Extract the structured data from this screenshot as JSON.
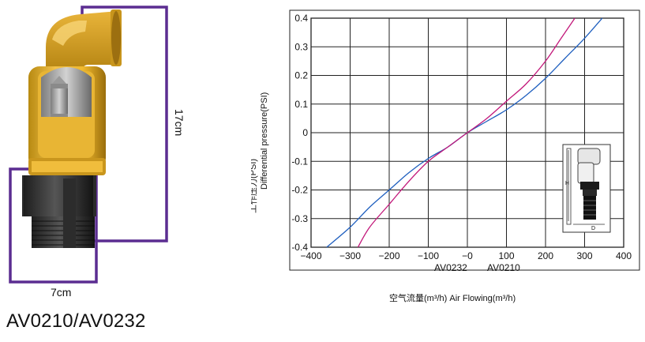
{
  "product": {
    "model_title": "AV0210/AV0232",
    "height_dimension": "17cm",
    "width_dimension": "7cm"
  },
  "chart_data": {
    "type": "line",
    "title": "",
    "xlabel": "空气流量(m³/h)  Air Flowing(m³/h)",
    "ylabel_cn": "工作压力(PSI)",
    "ylabel_en": "Differential pressure(PSI)",
    "xlim": [
      -400,
      400
    ],
    "ylim": [
      -0.4,
      0.4
    ],
    "grid": true,
    "xticks": [
      "−400",
      "−300",
      "−200",
      "−100",
      "−0",
      "100",
      "200",
      "300",
      "400"
    ],
    "yticks": [
      "0.4",
      "0.3",
      "0.2",
      "0.1",
      "0",
      "-0.1",
      "-0.2",
      "-0.3",
      "-0.4"
    ],
    "series_labels": [
      "AV0232",
      "AV0210"
    ],
    "series": [
      {
        "name": "AV0232",
        "color": "#1f5fbf",
        "points": [
          [
            -360,
            -0.4
          ],
          [
            -300,
            -0.33
          ],
          [
            -250,
            -0.26
          ],
          [
            -200,
            -0.2
          ],
          [
            -150,
            -0.14
          ],
          [
            -100,
            -0.09
          ],
          [
            -50,
            -0.05
          ],
          [
            0,
            0
          ],
          [
            50,
            0.04
          ],
          [
            100,
            0.08
          ],
          [
            150,
            0.13
          ],
          [
            200,
            0.19
          ],
          [
            250,
            0.26
          ],
          [
            300,
            0.33
          ],
          [
            345,
            0.4
          ]
        ]
      },
      {
        "name": "AV0210",
        "color": "#c2187a",
        "points": [
          [
            -280,
            -0.4
          ],
          [
            -250,
            -0.33
          ],
          [
            -200,
            -0.25
          ],
          [
            -150,
            -0.17
          ],
          [
            -100,
            -0.1
          ],
          [
            -50,
            -0.05
          ],
          [
            0,
            0
          ],
          [
            50,
            0.05
          ],
          [
            100,
            0.11
          ],
          [
            150,
            0.17
          ],
          [
            200,
            0.25
          ],
          [
            240,
            0.33
          ],
          [
            275,
            0.4
          ]
        ]
      }
    ],
    "inset_labels": {
      "height": "H",
      "diameter": "D"
    }
  }
}
